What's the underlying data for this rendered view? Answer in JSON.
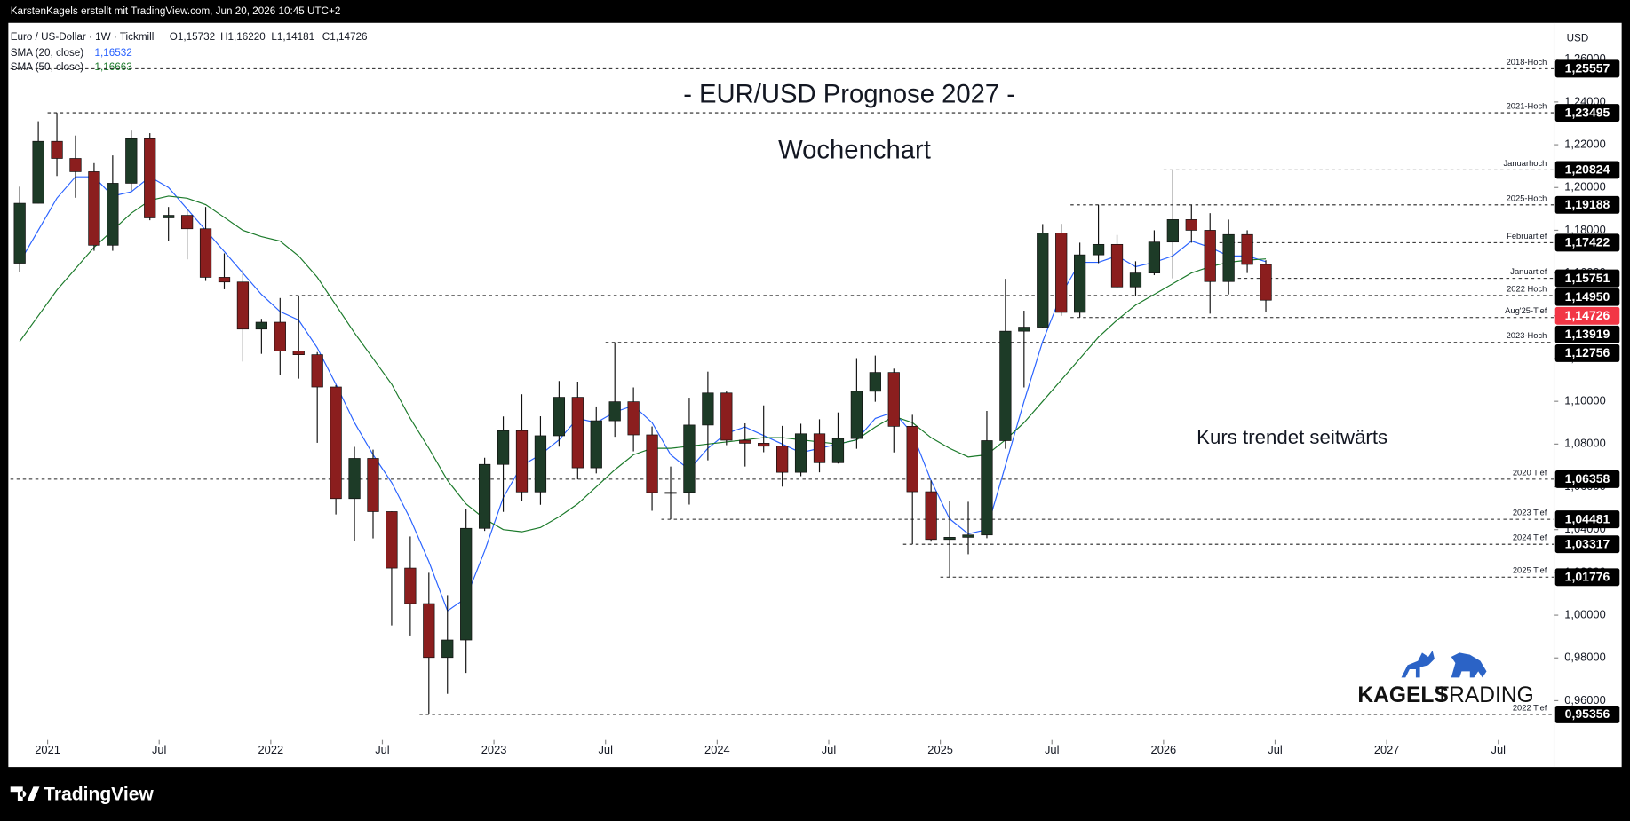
{
  "header": {
    "credit": "KarstenKagels erstellt mit TradingView.com, Jun 20, 2026 10:45 UTC+2",
    "symbol": "Euro / US-Dollar · 1W · Tickmill",
    "ohlc": [
      "O1,15732",
      "H1,16220",
      "L1,14181",
      "C1,14726"
    ]
  },
  "chart_data": {
    "type": "candlestick",
    "title": "- EUR/USD Prognose 2027 -",
    "subtitle": "Wochenchart",
    "annotation": "Kurs trendet seitwärts",
    "y_unit": "USD",
    "up_color": "#1d3b27",
    "down_color": "#8b1e1e",
    "candles": {
      "x": [
        "2020-11",
        "2020-12",
        "2021-01",
        "2021-02",
        "2021-03",
        "2021-04",
        "2021-05",
        "2021-06",
        "2021-07",
        "2021-08",
        "2021-09",
        "2021-10",
        "2021-11",
        "2021-12",
        "2022-01",
        "2022-02",
        "2022-03",
        "2022-04",
        "2022-05",
        "2022-06",
        "2022-07",
        "2022-08",
        "2022-09",
        "2022-10",
        "2022-11",
        "2022-12",
        "2023-01",
        "2023-02",
        "2023-03",
        "2023-04",
        "2023-05",
        "2023-06",
        "2023-07",
        "2023-08",
        "2023-09",
        "2023-10",
        "2023-11",
        "2023-12",
        "2024-01",
        "2024-02",
        "2024-03",
        "2024-04",
        "2024-05",
        "2024-06",
        "2024-07",
        "2024-08",
        "2024-09",
        "2024-10",
        "2024-11",
        "2024-12",
        "2025-01",
        "2025-02",
        "2025-03",
        "2025-04",
        "2025-05",
        "2025-06",
        "2025-07",
        "2025-08",
        "2025-09",
        "2025-10",
        "2025-11",
        "2025-12",
        "2026-01",
        "2026-02",
        "2026-03",
        "2026-04",
        "2026-05",
        "2026-06"
      ],
      "open": [
        1.1646,
        1.1926,
        1.2216,
        1.2136,
        1.2074,
        1.173,
        1.202,
        1.2228,
        1.1858,
        1.187,
        1.1807,
        1.158,
        1.1558,
        1.1338,
        1.137,
        1.1235,
        1.1218,
        1.1067,
        1.0545,
        1.0733,
        1.0484,
        1.022,
        1.0054,
        0.9802,
        0.9884,
        1.0406,
        1.0705,
        1.0863,
        1.0576,
        1.0839,
        1.1019,
        1.0689,
        1.0909,
        1.0998,
        1.0843,
        1.0573,
        1.0574,
        1.0889,
        1.1039,
        1.0818,
        1.0804,
        1.079,
        1.0668,
        1.0848,
        1.0713,
        1.0826,
        1.1047,
        1.1135,
        1.0883,
        1.0577,
        1.0354,
        1.0364,
        1.0375,
        1.0816,
        1.1328,
        1.1347,
        1.1787,
        1.1416,
        1.1685,
        1.1734,
        1.1535,
        1.16,
        1.1745,
        1.185,
        1.18,
        1.156,
        1.178,
        1.164
      ],
      "high": [
        1.2004,
        1.231,
        1.2349,
        1.2243,
        1.2114,
        1.215,
        1.2266,
        1.2254,
        1.1909,
        1.19,
        1.1909,
        1.1692,
        1.1616,
        1.1386,
        1.1483,
        1.1495,
        1.123,
        1.1076,
        1.0787,
        1.0774,
        1.0486,
        1.0368,
        1.0198,
        1.0094,
        1.0497,
        1.0736,
        1.0929,
        1.1033,
        1.093,
        1.1095,
        1.1092,
        1.0976,
        1.1276,
        1.1065,
        1.0882,
        1.0695,
        1.1017,
        1.1139,
        1.1046,
        1.0897,
        1.0981,
        1.0885,
        1.0895,
        1.0916,
        1.0948,
        1.1202,
        1.1214,
        1.1153,
        1.0937,
        1.063,
        1.0533,
        1.053,
        1.0955,
        1.1573,
        1.1424,
        1.1829,
        1.183,
        1.1742,
        1.1919,
        1.1778,
        1.1655,
        1.18,
        1.2082,
        1.192,
        1.188,
        1.185,
        1.18,
        1.166
      ],
      "low": [
        1.1603,
        1.1925,
        1.2054,
        1.1952,
        1.1704,
        1.1704,
        1.1986,
        1.1847,
        1.1752,
        1.1664,
        1.1563,
        1.1524,
        1.1186,
        1.1222,
        1.1121,
        1.1106,
        1.0806,
        1.0471,
        1.0349,
        1.0359,
        0.9952,
        0.9901,
        0.9536,
        0.9632,
        0.973,
        1.0394,
        1.0483,
        1.0533,
        1.0516,
        1.0788,
        1.0635,
        1.0663,
        1.0834,
        1.0766,
        1.0488,
        1.0448,
        1.0517,
        1.0724,
        1.0795,
        1.0695,
        1.0762,
        1.0601,
        1.065,
        1.0668,
        1.0709,
        1.0778,
        1.0998,
        1.0761,
        1.0332,
        1.0344,
        1.0178,
        1.0285,
        1.036,
        1.0778,
        1.1065,
        1.1344,
        1.14,
        1.1392,
        1.1646,
        1.153,
        1.1491,
        1.159,
        1.1575,
        1.1742,
        1.141,
        1.15,
        1.16,
        1.1418
      ],
      "close": [
        1.1926,
        1.2216,
        1.2136,
        1.2074,
        1.173,
        1.202,
        1.2228,
        1.1858,
        1.187,
        1.1807,
        1.158,
        1.1558,
        1.1338,
        1.137,
        1.1235,
        1.1218,
        1.1067,
        1.0545,
        1.0733,
        1.0484,
        1.022,
        1.0054,
        0.9802,
        0.9884,
        1.0406,
        1.0705,
        1.0863,
        1.0576,
        1.0839,
        1.1019,
        1.0689,
        1.0909,
        1.0998,
        1.0843,
        1.0573,
        1.0574,
        1.0889,
        1.1039,
        1.0818,
        1.0804,
        1.079,
        1.0668,
        1.0848,
        1.0713,
        1.0826,
        1.1047,
        1.1135,
        1.0883,
        1.0577,
        1.0354,
        1.0364,
        1.0375,
        1.0816,
        1.1328,
        1.1347,
        1.1787,
        1.1416,
        1.1685,
        1.1734,
        1.1535,
        1.16,
        1.1745,
        1.185,
        1.18,
        1.156,
        1.178,
        1.164,
        1.1473
      ]
    },
    "series": [
      {
        "name": "SMA (20, close)",
        "color": "#2962ff",
        "last_label": "1,16532",
        "values": [
          1.165,
          1.18,
          1.195,
          1.205,
          1.205,
          1.196,
          1.198,
          1.205,
          1.2,
          1.19,
          1.18,
          1.17,
          1.16,
          1.15,
          1.142,
          1.138,
          1.125,
          1.108,
          1.09,
          1.075,
          1.062,
          1.045,
          1.025,
          1.002,
          1.008,
          1.03,
          1.055,
          1.07,
          1.075,
          1.082,
          1.092,
          1.09,
          1.095,
          1.098,
          1.09,
          1.075,
          1.068,
          1.078,
          1.085,
          1.088,
          1.084,
          1.08,
          1.076,
          1.078,
          1.08,
          1.082,
          1.092,
          1.095,
          1.085,
          1.063,
          1.045,
          1.038,
          1.04,
          1.07,
          1.1,
          1.128,
          1.15,
          1.165,
          1.165,
          1.168,
          1.163,
          1.165,
          1.168,
          1.175,
          1.172,
          1.168,
          1.168,
          1.16532
        ]
      },
      {
        "name": "SMA (50, close)",
        "color": "#1b7a2a",
        "last_label": "1,16663",
        "values": [
          1.128,
          1.14,
          1.152,
          1.162,
          1.172,
          1.18,
          1.188,
          1.194,
          1.196,
          1.195,
          1.192,
          1.186,
          1.18,
          1.177,
          1.175,
          1.168,
          1.158,
          1.145,
          1.132,
          1.12,
          1.108,
          1.092,
          1.078,
          1.063,
          1.052,
          1.045,
          1.04,
          1.039,
          1.041,
          1.046,
          1.052,
          1.06,
          1.068,
          1.075,
          1.078,
          1.078,
          1.079,
          1.08,
          1.081,
          1.082,
          1.083,
          1.083,
          1.082,
          1.081,
          1.08,
          1.082,
          1.088,
          1.093,
          1.09,
          1.083,
          1.078,
          1.074,
          1.075,
          1.082,
          1.09,
          1.1,
          1.11,
          1.12,
          1.13,
          1.138,
          1.145,
          1.15,
          1.155,
          1.16,
          1.163,
          1.165,
          1.166,
          1.16663
        ]
      }
    ],
    "levels": [
      {
        "name": "2018-Hoch",
        "value": 1.25557,
        "label": "1,25557",
        "from": "2020-11"
      },
      {
        "name": "2021-Hoch",
        "value": 1.23495,
        "label": "1,23495",
        "from": "2021-01"
      },
      {
        "name": "Januarhoch",
        "value": 1.20824,
        "label": "1,20824",
        "from": "2026-01"
      },
      {
        "name": "2025-Hoch",
        "value": 1.19188,
        "label": "1,19188",
        "from": "2025-08"
      },
      {
        "name": "Februartief",
        "value": 1.17422,
        "label": "1,17422",
        "from": "2026-04"
      },
      {
        "name": "Januartief",
        "value": 1.15751,
        "label": "1,15751",
        "from": "2026-05"
      },
      {
        "name": "2022 Hoch",
        "value": 1.1495,
        "label": "1,14950",
        "from": "2022-02"
      },
      {
        "name": "Aug'25-Tief",
        "value": 1.13919,
        "label": "1,13919",
        "from": "2025-08"
      },
      {
        "name": "2023-Hoch",
        "value": 1.12756,
        "label": "1,12756",
        "from": "2023-07"
      },
      {
        "name": "2020 Tief",
        "value": 1.06358,
        "label": "1,06358",
        "from": "2020-11"
      },
      {
        "name": "2023 Tief",
        "value": 1.04481,
        "label": "1,04481",
        "from": "2023-10"
      },
      {
        "name": "2024 Tief",
        "value": 1.03317,
        "label": "1,03317",
        "from": "2024-11"
      },
      {
        "name": "2025 Tief",
        "value": 1.01776,
        "label": "1,01776",
        "from": "2025-01"
      },
      {
        "name": "2022 Tief",
        "value": 0.95356,
        "label": "0,95356",
        "from": "2022-09"
      }
    ],
    "last_price": {
      "value": 1.14726,
      "label": "1,14726",
      "color": "#f23645"
    },
    "xlim": [
      "2020-11",
      "2027-10"
    ],
    "xticks": [
      {
        "value": "2021-01",
        "label": "2021"
      },
      {
        "value": "2021-07",
        "label": "Jul"
      },
      {
        "value": "2022-01",
        "label": "2022"
      },
      {
        "value": "2022-07",
        "label": "Jul"
      },
      {
        "value": "2023-01",
        "label": "2023"
      },
      {
        "value": "2023-07",
        "label": "Jul"
      },
      {
        "value": "2024-01",
        "label": "2024"
      },
      {
        "value": "2024-07",
        "label": "Jul"
      },
      {
        "value": "2025-01",
        "label": "2025"
      },
      {
        "value": "2025-07",
        "label": "Jul"
      },
      {
        "value": "2026-01",
        "label": "2026"
      },
      {
        "value": "2026-07",
        "label": "Jul"
      },
      {
        "value": "2027-01",
        "label": "2027"
      },
      {
        "value": "2027-07",
        "label": "Jul"
      }
    ],
    "ylim": [
      0.929,
      1.277
    ],
    "yticks": [
      {
        "value": 0.96,
        "label": "0,96000"
      },
      {
        "value": 0.98,
        "label": "0,98000"
      },
      {
        "value": 1.0,
        "label": "1,00000"
      },
      {
        "value": 1.02,
        "label": "1,02000"
      },
      {
        "value": 1.04,
        "label": "1,04000"
      },
      {
        "value": 1.06,
        "label": "1,06000"
      },
      {
        "value": 1.08,
        "label": "1,08000"
      },
      {
        "value": 1.1,
        "label": "1,10000"
      },
      {
        "value": 1.12,
        "label": "1,12000"
      },
      {
        "value": 1.14,
        "label": "1,14000"
      },
      {
        "value": 1.16,
        "label": "1,16000"
      },
      {
        "value": 1.18,
        "label": "1,18000"
      },
      {
        "value": 1.2,
        "label": "1,20000"
      },
      {
        "value": 1.22,
        "label": "1,22000"
      },
      {
        "value": 1.24,
        "label": "1,24000"
      },
      {
        "value": 1.26,
        "label": "1,26000"
      }
    ]
  },
  "branding": {
    "logo_bold": "KAGELS",
    "logo_light": "TRADING",
    "footer": "TradingView"
  }
}
